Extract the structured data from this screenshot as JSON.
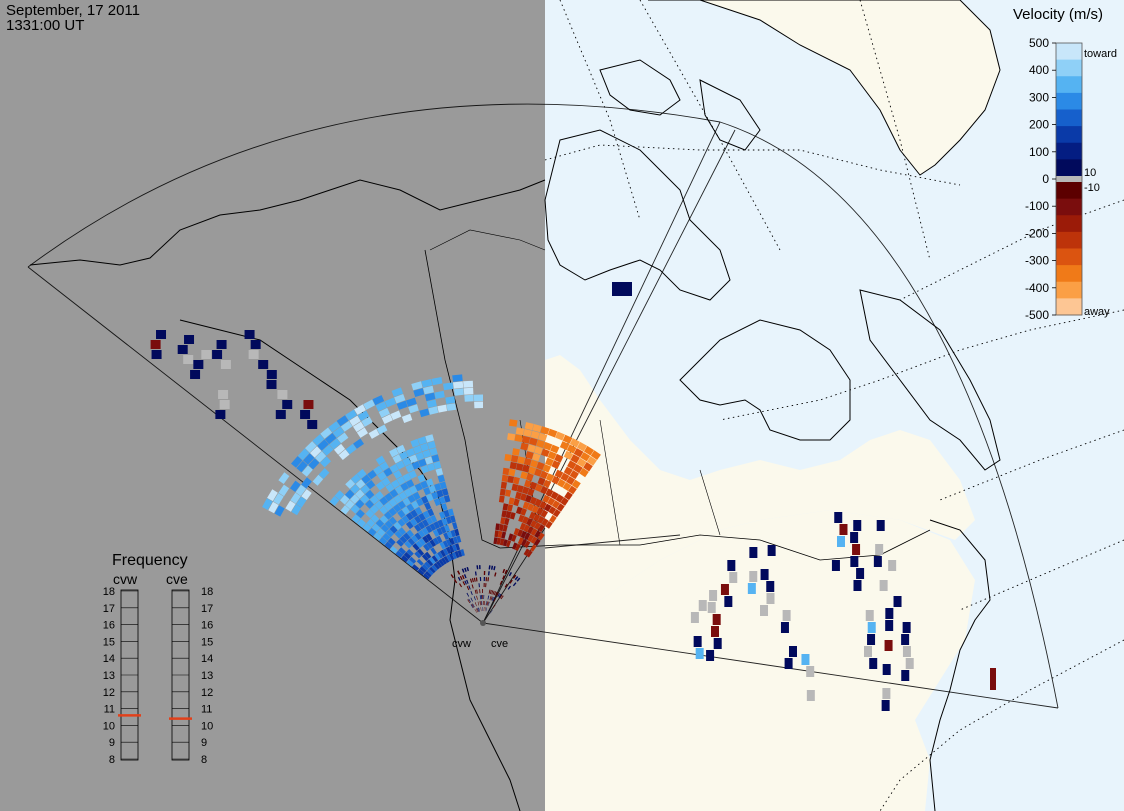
{
  "header": {
    "date": "September, 17 2011",
    "time": "1331:00 UT"
  },
  "legend": {
    "title": "Velocity (m/s)",
    "ticks": [
      "500",
      "400",
      "300",
      "200",
      "100",
      "0",
      "-100",
      "-200",
      "-300",
      "-400",
      "-500"
    ],
    "label_toward": "toward",
    "label_away": "away",
    "label_pos": "10",
    "label_neg": "-10",
    "colors_toward": [
      "#c8e6fa",
      "#8fd0f7",
      "#55b3f2",
      "#2b8ae6",
      "#1660cc",
      "#0a3aa8",
      "#041d82",
      "#010a5c"
    ],
    "colors_away": [
      "#5c0000",
      "#7a0d0d",
      "#9b1b08",
      "#bd330a",
      "#db5410",
      "#f07a18",
      "#fb9f45",
      "#fdc694"
    ],
    "ground_scatter": "#b8b8b8"
  },
  "frequency": {
    "title": "Frequency",
    "radars": [
      "cvw",
      "cve"
    ],
    "scale": [
      "18",
      "17",
      "16",
      "15",
      "14",
      "13",
      "12",
      "11",
      "10",
      "9",
      "8"
    ],
    "marker_mhz": [
      10.6,
      10.4
    ],
    "marker_color": "#e2401a"
  },
  "sites": {
    "west": "cvw",
    "east": "cve"
  },
  "colors": {
    "night": "#9a9a9a",
    "land_day": "#fbf9ec",
    "ocean_day": "#e8f4fc",
    "coast": "#000000"
  }
}
